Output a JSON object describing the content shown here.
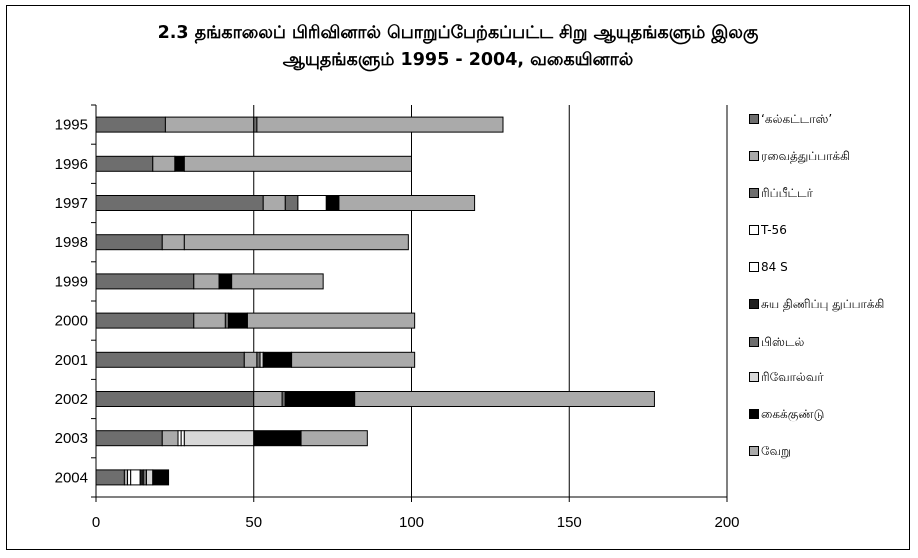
{
  "chart_data": {
    "type": "bar",
    "orientation": "horizontal",
    "stacked": true,
    "title_lines": [
      "2.3  தங்காலைப் பிரிவினால் பொறுப்பேற்கப்பட்ட சிறு ஆயுதங்களும் இலகு",
      "ஆயுதங்களும் 1995 - 2004, வகையினால்"
    ],
    "categories": [
      "1995",
      "1996",
      "1997",
      "1998",
      "1999",
      "2000",
      "2001",
      "2002",
      "2003",
      "2004"
    ],
    "x_ticks": [
      "0",
      "50",
      "100",
      "150",
      "200"
    ],
    "xlim": [
      0,
      200
    ],
    "grid": "vertical",
    "legend_position": "right",
    "series": [
      {
        "name": "‘கல்கட்டாஸ்’",
        "color": "#6e6e6e",
        "values": [
          22,
          18,
          53,
          21,
          31,
          31,
          47,
          50,
          21,
          9
        ]
      },
      {
        "name": "ரவைத்துப்பாக்கி",
        "color": "#aaaaaa",
        "values": [
          28,
          7,
          7,
          7,
          8,
          10,
          4,
          9,
          5,
          1
        ]
      },
      {
        "name": "ரிப்பீட்டர்",
        "color": "#6e6e6e",
        "values": [
          0,
          0,
          4,
          0,
          0,
          1,
          1,
          1,
          0,
          0
        ]
      },
      {
        "name": "T-56",
        "color": "#ffffff",
        "values": [
          0,
          0,
          0,
          0,
          0,
          0,
          0,
          0,
          1,
          1
        ]
      },
      {
        "name": "84 S",
        "color": "#ffffff",
        "values": [
          0,
          0,
          9,
          0,
          0,
          0,
          0,
          0,
          1,
          3
        ]
      },
      {
        "name": "சுய திணிப்பு துப்பாக்கி",
        "color": "#202020",
        "values": [
          0,
          0,
          0,
          0,
          0,
          0,
          0,
          0,
          0,
          1
        ]
      },
      {
        "name": "பிஸ்டல்",
        "color": "#6e6e6e",
        "values": [
          1,
          0,
          0,
          0,
          0,
          0,
          0,
          0,
          0,
          1
        ]
      },
      {
        "name": "ரிவோல்வர்",
        "color": "#d8d8d8",
        "values": [
          0,
          0,
          0,
          0,
          0,
          0,
          1,
          0,
          22,
          2
        ]
      },
      {
        "name": "கைக்குண்டு",
        "color": "#000000",
        "values": [
          0,
          3,
          4,
          0,
          4,
          6,
          9,
          22,
          15,
          5
        ]
      },
      {
        "name": "வேறு",
        "color": "#aaaaaa",
        "values": [
          78,
          72,
          43,
          71,
          29,
          53,
          39,
          95,
          21,
          0
        ]
      }
    ]
  }
}
